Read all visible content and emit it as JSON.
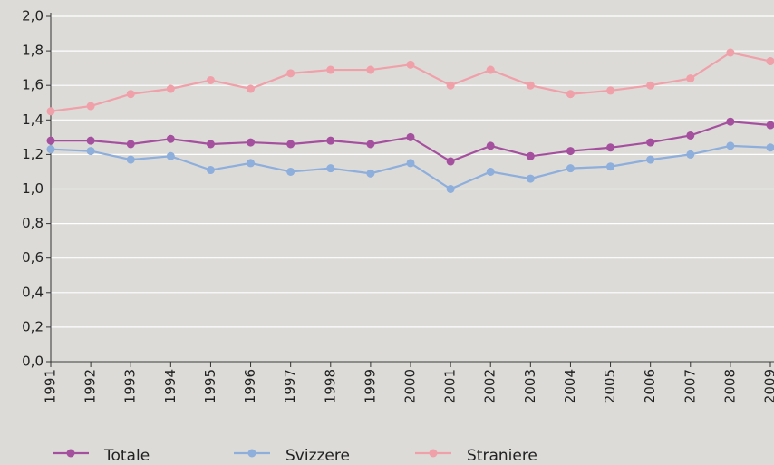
{
  "chart_data": {
    "type": "line",
    "categories": [
      "1991",
      "1992",
      "1993",
      "1994",
      "1995",
      "1996",
      "1997",
      "1998",
      "1999",
      "2000",
      "2001",
      "2002",
      "2003",
      "2004",
      "2005",
      "2006",
      "2007",
      "2008",
      "2009"
    ],
    "series": [
      {
        "name": "Totale",
        "color": "#a5509e",
        "values": [
          1.28,
          1.28,
          1.26,
          1.29,
          1.26,
          1.27,
          1.26,
          1.28,
          1.26,
          1.3,
          1.16,
          1.25,
          1.19,
          1.22,
          1.24,
          1.27,
          1.31,
          1.39,
          1.37
        ]
      },
      {
        "name": "Svizzere",
        "color": "#8eaedc",
        "values": [
          1.23,
          1.22,
          1.17,
          1.19,
          1.11,
          1.15,
          1.1,
          1.12,
          1.09,
          1.15,
          1.0,
          1.1,
          1.06,
          1.12,
          1.13,
          1.17,
          1.2,
          1.25,
          1.24
        ]
      },
      {
        "name": "Straniere",
        "color": "#f0a0a9",
        "values": [
          1.45,
          1.48,
          1.55,
          1.58,
          1.63,
          1.58,
          1.67,
          1.69,
          1.69,
          1.72,
          1.6,
          1.69,
          1.6,
          1.55,
          1.57,
          1.6,
          1.64,
          1.79,
          1.74
        ]
      }
    ],
    "ylim": [
      0,
      2
    ],
    "yticks": [
      {
        "value": 0,
        "label": "0,0"
      },
      {
        "value": 0.2,
        "label": "0,2"
      },
      {
        "value": 0.4,
        "label": "0,4"
      },
      {
        "value": 0.6,
        "label": "0,6"
      },
      {
        "value": 0.8,
        "label": "0,8"
      },
      {
        "value": 1.0,
        "label": "1,0"
      },
      {
        "value": 1.2,
        "label": "1,2"
      },
      {
        "value": 1.4,
        "label": "1,4"
      },
      {
        "value": 1.6,
        "label": "1,6"
      },
      {
        "value": 1.8,
        "label": "1,8"
      },
      {
        "value": 2.0,
        "label": "2,0"
      }
    ],
    "grid": true,
    "legend": "bottom"
  }
}
